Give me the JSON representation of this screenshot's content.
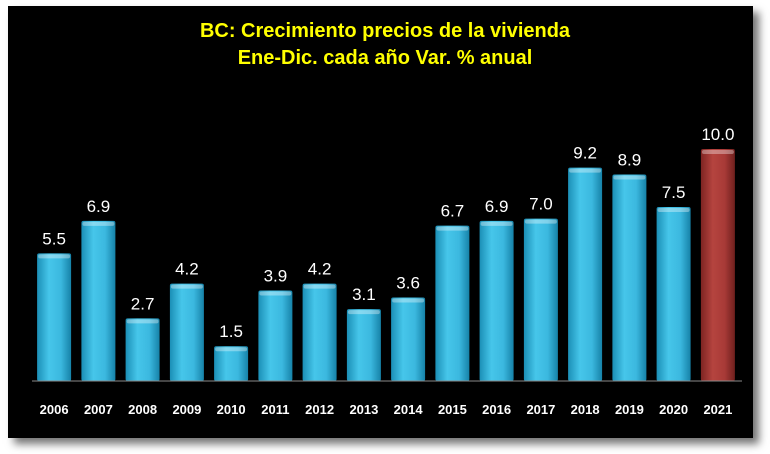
{
  "chart_data": {
    "type": "bar",
    "title": "BC: Crecimiento precios de la vivienda",
    "subtitle": "Ene-Dic. cada año Var. % anual",
    "categories": [
      "2006",
      "2007",
      "2008",
      "2009",
      "2010",
      "2011",
      "2012",
      "2013",
      "2014",
      "2015",
      "2016",
      "2017",
      "2018",
      "2019",
      "2020",
      "2021"
    ],
    "values": [
      5.5,
      6.9,
      2.7,
      4.2,
      1.5,
      3.9,
      4.2,
      3.1,
      3.6,
      6.7,
      6.9,
      7.0,
      9.2,
      8.9,
      7.5,
      10.0
    ],
    "labels": [
      "5.5",
      "6.9",
      "2.7",
      "4.2",
      "1.5",
      "3.9",
      "4.2",
      "3.1",
      "3.6",
      "6.7",
      "6.9",
      "7.0",
      "9.2",
      "8.9",
      "7.5",
      "10.0"
    ],
    "ylim": [
      0,
      10
    ],
    "grid": false,
    "legend": "none",
    "colors": {
      "bar": "#3fbfe4",
      "bar_highlight": "#a83a37",
      "background": "#000000",
      "title": "#ffff00",
      "labels": "#ffffff"
    },
    "highlight_index": 15
  }
}
